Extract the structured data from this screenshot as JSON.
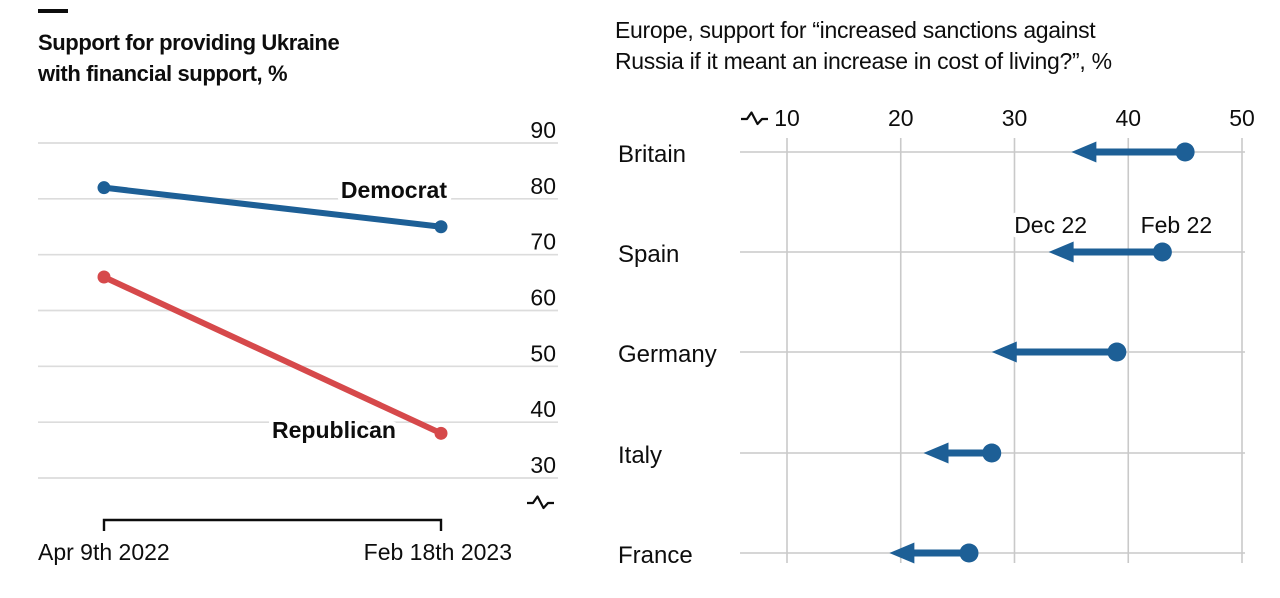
{
  "page": {
    "background": "#ffffff"
  },
  "colors": {
    "line_blue": "#1d5f96",
    "line_red": "#d6494b",
    "grid_light": "#dcdcdc",
    "grid_mid": "#c9c9c9",
    "text": "#0d0d0d"
  },
  "icons": {
    "axis_break": "axis-break-squiggle"
  },
  "chart_data": [
    {
      "type": "line",
      "panel": "left",
      "title": "Support for providing Ukraine with financial support, %",
      "title_lines": [
        "Support for providing Ukraine",
        "with financial support, %"
      ],
      "x_categories": [
        "Apr 9th 2022",
        "Feb 18th 2023"
      ],
      "ylim": [
        30,
        90
      ],
      "yticks": [
        90,
        80,
        70,
        60,
        50,
        40,
        30
      ],
      "y_axis_break": true,
      "grid": "horizontal",
      "legend": "inline-labels",
      "series": [
        {
          "name": "Democrat",
          "color": "#1d5f96",
          "values": [
            82,
            75
          ]
        },
        {
          "name": "Republican",
          "color": "#d6494b",
          "values": [
            66,
            38
          ]
        }
      ]
    },
    {
      "type": "arrow",
      "panel": "right",
      "title": "Europe, support for “increased sanctions against Russia if it meant an increase in cost of living?”, %",
      "title_lines": [
        "Europe, support for “increased sanctions against",
        "Russia if it meant an increase in cost of living?”, %"
      ],
      "categories": [
        "Britain",
        "Spain",
        "Germany",
        "Italy",
        "France"
      ],
      "xticks": [
        10,
        20,
        30,
        40,
        50
      ],
      "xlim": [
        10,
        50
      ],
      "x_axis_break": true,
      "grid": "both",
      "arrow_color": "#1d5f96",
      "series": [
        {
          "name": "Feb 22",
          "values": [
            45,
            43,
            39,
            28,
            26
          ]
        },
        {
          "name": "Dec 22",
          "values": [
            35,
            33,
            28,
            22,
            19
          ]
        }
      ],
      "annotations": [
        {
          "label": "Dec 22",
          "row": "Spain",
          "at_series": "Dec 22"
        },
        {
          "label": "Feb 22",
          "row": "Spain",
          "at_series": "Feb 22"
        }
      ]
    }
  ]
}
